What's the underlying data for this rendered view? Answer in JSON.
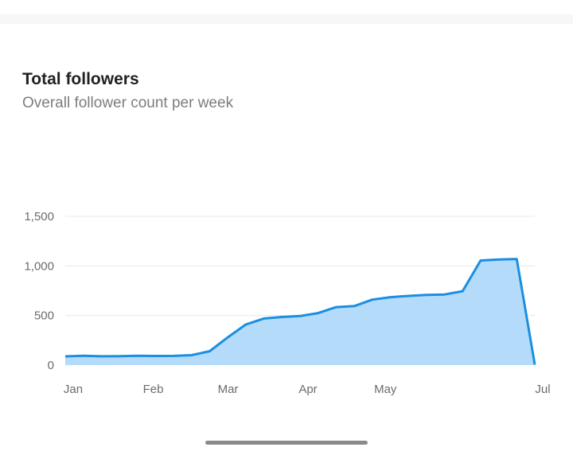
{
  "header": {
    "title": "Total followers",
    "subtitle": "Overall follower count per week"
  },
  "colors": {
    "line": "#1a8fe0",
    "area": "#b5dbfb",
    "grid": "#e8e8e8",
    "axis_text": "#6b6b6b"
  },
  "chart_data": {
    "type": "area",
    "title": "Total followers",
    "subtitle": "Overall follower count per week",
    "xlabel": "",
    "ylabel": "",
    "x_ticks": [
      "Jan",
      "Feb",
      "Mar",
      "Apr",
      "May",
      "Jul"
    ],
    "y_ticks": [
      "0",
      "500",
      "1,000",
      "1,500"
    ],
    "ylim": [
      0,
      1500
    ],
    "grid": true,
    "legend": "none",
    "series": [
      {
        "x": [
          "2024-01-01",
          "2024-01-08",
          "2024-01-15",
          "2024-01-22",
          "2024-01-29",
          "2024-02-05",
          "2024-02-12",
          "2024-02-19",
          "2024-02-26",
          "2024-03-04",
          "2024-03-11",
          "2024-03-18",
          "2024-03-25",
          "2024-04-01",
          "2024-04-08",
          "2024-04-15",
          "2024-04-22",
          "2024-04-29",
          "2024-05-06",
          "2024-05-13",
          "2024-05-20",
          "2024-05-27",
          "2024-06-03",
          "2024-06-10",
          "2024-06-17",
          "2024-06-24",
          "2024-07-01"
        ],
        "values": [
          88,
          95,
          89,
          91,
          94,
          92,
          93,
          100,
          140,
          280,
          410,
          470,
          485,
          495,
          525,
          585,
          595,
          660,
          685,
          698,
          708,
          712,
          745,
          1055,
          1065,
          1070,
          5
        ]
      }
    ]
  }
}
